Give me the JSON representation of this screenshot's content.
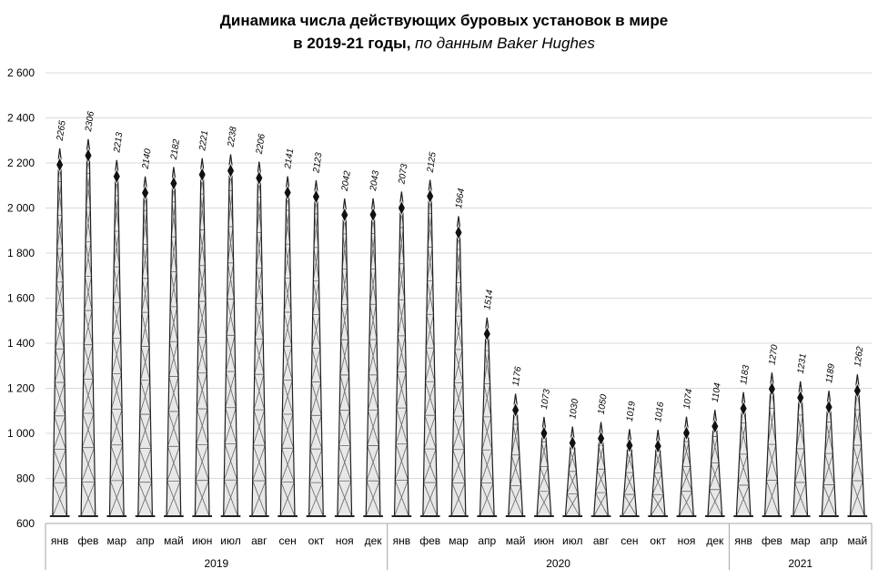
{
  "chart_data": {
    "type": "bar",
    "title_line1": "Динамика числа действующих буровых установок в мире",
    "title_line2_bold": "в 2019-21 годы,",
    "title_line2_italic": "по данным Baker Hughes",
    "ylim": [
      600,
      2600
    ],
    "y_ticks": [
      "600",
      "800",
      "1 000",
      "1 200",
      "1 400",
      "1 600",
      "1 800",
      "2 000",
      "2 200",
      "2 400",
      "2 600"
    ],
    "categories": [
      "янв",
      "фев",
      "мар",
      "апр",
      "май",
      "июн",
      "июл",
      "авг",
      "сен",
      "окт",
      "ноя",
      "дек",
      "янв",
      "фев",
      "мар",
      "апр",
      "май",
      "июн",
      "июл",
      "авг",
      "сен",
      "окт",
      "ноя",
      "дек",
      "янв",
      "фев",
      "мар",
      "апр",
      "май"
    ],
    "years": [
      {
        "label": "2019",
        "start": 0,
        "count": 12
      },
      {
        "label": "2020",
        "start": 12,
        "count": 12
      },
      {
        "label": "2021",
        "start": 24,
        "count": 5
      }
    ],
    "values": [
      2265,
      2306,
      2213,
      2140,
      2182,
      2221,
      2238,
      2206,
      2141,
      2123,
      2042,
      2043,
      2073,
      2125,
      1964,
      1514,
      1176,
      1073,
      1030,
      1050,
      1019,
      1016,
      1074,
      1104,
      1183,
      1270,
      1231,
      1189,
      1262
    ],
    "data_labels": [
      "2265",
      "2306",
      "2213",
      "2140",
      "2182",
      "2221",
      "2238",
      "2206",
      "2141",
      "2123",
      "2042",
      "2043",
      "2073",
      "2125",
      "1964",
      "1514",
      "1176",
      "1073",
      "1030",
      "1050",
      "1019",
      "1016",
      "1074",
      "1104",
      "1183",
      "1270",
      "1231",
      "1189",
      "1262"
    ],
    "grid": true,
    "bar_style": "drilling-rig",
    "colors": {
      "grid": "#d9d9d9",
      "rig": "#3a3a3a",
      "axis": "#a6a6a6"
    }
  }
}
